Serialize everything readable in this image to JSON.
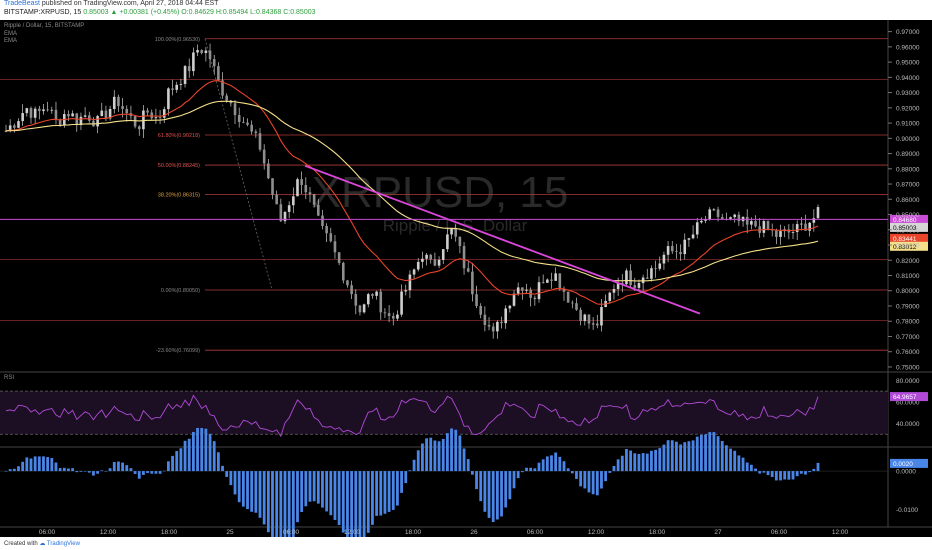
{
  "header": {
    "author": "TradeBeast",
    "published_text": "published on TradingView.com, April 27, 2018 04:44 EST",
    "symbol_line": "BITSTAMP:XRPUSD, 15",
    "price_line": "0.85003 ▲ +0.00381 (+0.45%) O:0.84629 H:0.85494 L:0.84368 C:0.85003"
  },
  "legend": {
    "title": "Ripple / Dollar, 15, BITSTAMP",
    "ema1": "EMA",
    "ema2": "EMA"
  },
  "watermark": {
    "symbol": "XRPUSD, 15",
    "name": "Ripple / U.S. Dollar"
  },
  "footer": {
    "created_with": "Created with",
    "brand": "TradingView"
  },
  "colors": {
    "candle": "#cfcfcf",
    "ema_fast": "#e8452a",
    "ema_slow": "#f5e08a",
    "trendline": "#d946d9",
    "horizontal_line": "#c84ad6",
    "fib": "#b33a3a",
    "rsi": "#b04ad6",
    "macd_hist": "#4a86e8"
  },
  "chart_data": {
    "type": "candlestick",
    "x_tick_labels": [
      "06:00",
      "12:00",
      "18:00",
      "25",
      "06:00",
      "12:00",
      "18:00",
      "26",
      "06:00",
      "12:00",
      "18:00",
      "27",
      "06:00",
      "12:00"
    ],
    "price_ticks": [
      "0.97000",
      "0.96000",
      "0.95000",
      "0.94000",
      "0.93000",
      "0.92000",
      "0.91000",
      "0.90000",
      "0.89000",
      "0.88000",
      "0.87000",
      "0.86000",
      "0.85000",
      "0.84000",
      "0.83000",
      "0.82000",
      "0.81000",
      "0.80000",
      "0.79000",
      "0.78000",
      "0.77000",
      "0.76000",
      "0.75000"
    ],
    "ylim": [
      0.748,
      0.975
    ],
    "close_path": [
      0.905,
      0.912,
      0.92,
      0.915,
      0.922,
      0.91,
      0.918,
      0.912,
      0.916,
      0.91,
      0.918,
      0.925,
      0.915,
      0.908,
      0.918,
      0.912,
      0.93,
      0.938,
      0.946,
      0.96,
      0.955,
      0.935,
      0.925,
      0.915,
      0.905,
      0.895,
      0.87,
      0.845,
      0.86,
      0.875,
      0.86,
      0.84,
      0.83,
      0.815,
      0.8,
      0.785,
      0.8,
      0.79,
      0.78,
      0.795,
      0.81,
      0.825,
      0.815,
      0.83,
      0.84,
      0.82,
      0.8,
      0.785,
      0.77,
      0.785,
      0.8,
      0.805,
      0.795,
      0.81,
      0.812,
      0.8,
      0.79,
      0.782,
      0.775,
      0.79,
      0.805,
      0.81,
      0.806,
      0.812,
      0.815,
      0.825,
      0.826,
      0.83,
      0.84,
      0.848,
      0.85,
      0.845,
      0.846,
      0.842,
      0.843,
      0.84,
      0.836,
      0.838,
      0.84,
      0.845,
      0.85
    ],
    "ohlc_last": {
      "open": 0.84629,
      "high": 0.85494,
      "low": 0.84368,
      "close": 0.85003
    },
    "price_labels": [
      {
        "text": "0.84680",
        "color": "#ffffff",
        "bg": "#c84ad6",
        "value": 0.8468
      },
      {
        "text": "0.85003",
        "color": "#000000",
        "bg": "#d6d6d6",
        "value": 0.85003
      },
      {
        "text": "0.83441",
        "color": "#ffffff",
        "bg": "#e8452a",
        "value": 0.83441
      },
      {
        "text": "0.83012",
        "color": "#000000",
        "bg": "#f5e08a",
        "value": 0.83012
      }
    ],
    "fib_levels": [
      {
        "label": "100.00%(0.96530)",
        "value": 0.9653
      },
      {
        "label": "61.80%(0.90218)",
        "value": 0.90218
      },
      {
        "label": "50.00%(0.88245)",
        "value": 0.88245
      },
      {
        "label": "38.20%(0.86315)",
        "value": 0.86315
      },
      {
        "label": "0.00%(0.80050)",
        "value": 0.8005
      },
      {
        "label": "-23.60%(0.76099)",
        "value": 0.76099
      }
    ],
    "extra_lines": [
      0.9385,
      0.8205,
      0.7805
    ],
    "horizontal_line": 0.8468,
    "trendline": {
      "from": [
        0.882,
        0.8675
      ],
      "to": [
        0.785,
        0.7995
      ]
    },
    "rsi": {
      "label": "RSI",
      "ticks": [
        "80.0000",
        "60.0000",
        "40.0000"
      ],
      "levels": [
        70,
        30
      ],
      "ylim": [
        20,
        85
      ],
      "current": "64.9657"
    },
    "macd": {
      "ticks": [
        "0.0000",
        "-0.0100"
      ],
      "ylim": [
        -0.014,
        0.006
      ],
      "current": "0.0020"
    }
  }
}
